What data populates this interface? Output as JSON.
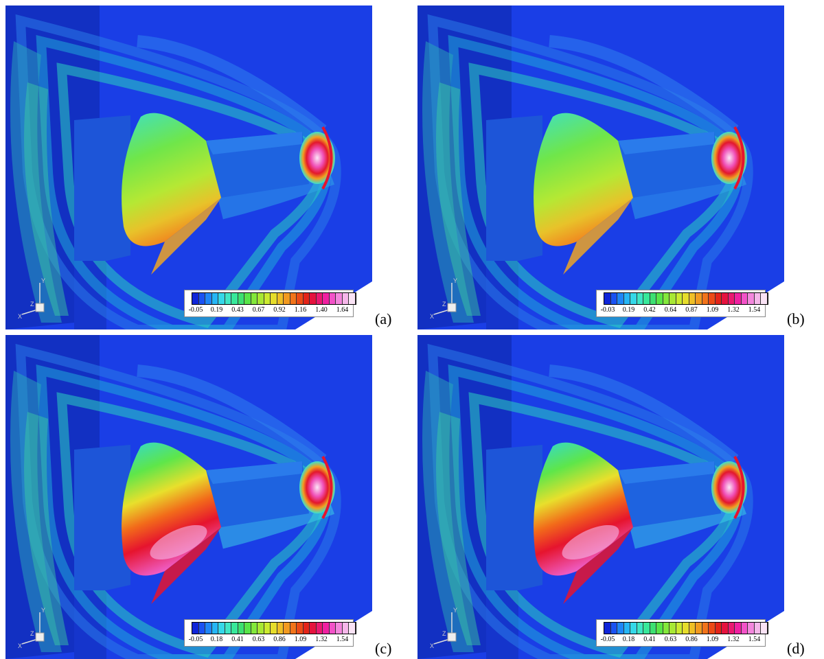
{
  "figure": {
    "colorbar_colors": [
      "#0f25d8",
      "#1a52f2",
      "#1f86f7",
      "#26b6f5",
      "#35d8e8",
      "#3fe6c6",
      "#38e89a",
      "#3de071",
      "#58e548",
      "#83e83b",
      "#a8e834",
      "#ccea2f",
      "#e6dd2b",
      "#efbf26",
      "#f29a20",
      "#f2741a",
      "#ec4a16",
      "#e42418",
      "#e5133e",
      "#eb1871",
      "#f020a1",
      "#f353c8",
      "#f487dd",
      "#f6b7ea",
      "#fae3f5"
    ],
    "panels": [
      {
        "label": "(a)",
        "variant": "a",
        "ticks": [
          "-0.05",
          "0.19",
          "0.43",
          "0.67",
          "0.92",
          "1.16",
          "1.40",
          "1.64"
        ]
      },
      {
        "label": "(b)",
        "variant": "b",
        "ticks": [
          "-0.03",
          "0.19",
          "0.42",
          "0.64",
          "0.87",
          "1.09",
          "1.32",
          "1.54"
        ]
      },
      {
        "label": "(c)",
        "variant": "c",
        "ticks": [
          "-0.05",
          "0.18",
          "0.41",
          "0.63",
          "0.86",
          "1.09",
          "1.32",
          "1.54"
        ]
      },
      {
        "label": "(d)",
        "variant": "d",
        "ticks": [
          "-0.05",
          "0.18",
          "0.41",
          "0.63",
          "0.86",
          "1.09",
          "1.32",
          "1.54"
        ]
      }
    ],
    "axis_letters": [
      "Y",
      "Z",
      "X"
    ]
  }
}
